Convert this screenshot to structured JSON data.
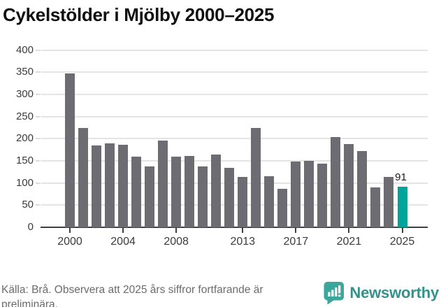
{
  "title": "Cykelstölder i Mjölby 2000–2025",
  "chart_data": {
    "type": "bar",
    "title": "Cykelstölder i Mjölby 2000–2025",
    "categories": [
      "2000",
      "2001",
      "2002",
      "2003",
      "2004",
      "2005",
      "2006",
      "2007",
      "2008",
      "2009",
      "2010",
      "2011",
      "2012",
      "2013",
      "2014",
      "2015",
      "2016",
      "2017",
      "2018",
      "2019",
      "2020",
      "2021",
      "2022",
      "2023",
      "2024",
      "2025"
    ],
    "values": [
      347,
      225,
      185,
      189,
      186,
      160,
      137,
      196,
      160,
      161,
      137,
      165,
      135,
      113,
      225,
      116,
      87,
      149,
      150,
      144,
      203,
      188,
      172,
      90,
      114,
      91
    ],
    "xlabel": "",
    "ylabel": "",
    "ylim": [
      0,
      400
    ],
    "y_ticks": [
      0,
      50,
      100,
      150,
      200,
      250,
      300,
      350,
      400
    ],
    "x_tick_labels": [
      "2000",
      "2004",
      "2008",
      "2013",
      "2017",
      "2021",
      "2025"
    ],
    "grid": true,
    "legend": false,
    "bar_color": "#6e6c73",
    "highlight_category": "2025",
    "highlight_color": "#00a49b",
    "data_label": {
      "category": "2025",
      "text": "91"
    }
  },
  "footer": {
    "source_lines": [
      "Källa: Brå. Observera att 2025 års siffror fortfarande är",
      "preliminära."
    ],
    "brand": "Newsworthy"
  },
  "colors": {
    "title": "#101010",
    "axis": "#3f3f3f",
    "gridline": "#e4e4e4",
    "tick_label": "#3b3b3b",
    "footer_text": "#6b6b6b",
    "brand_icon": "#3aa69c",
    "brand_text": "#34918b"
  }
}
